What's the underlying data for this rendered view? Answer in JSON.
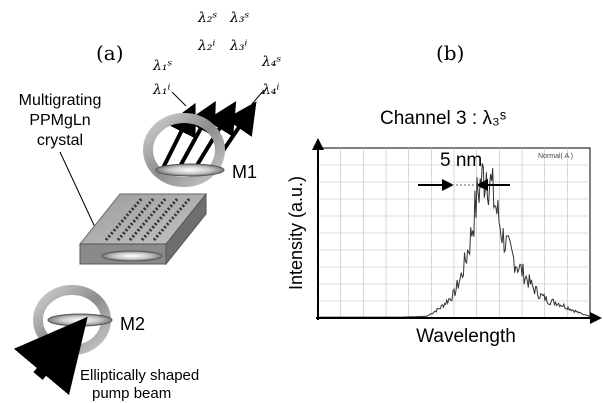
{
  "panel_a": {
    "label": "(a)",
    "crystal_label": [
      "Multigrating",
      "PPMgLn",
      "crystal"
    ],
    "mirror1_label": "M1",
    "mirror2_label": "M2",
    "pump_label": [
      "Elliptically shaped",
      "pump beam"
    ],
    "wavelength_labels": [
      {
        "signal": "λ₁ˢ",
        "idler": "λ₁ⁱ"
      },
      {
        "signal": "λ₂ˢ",
        "idler": "λ₂ⁱ"
      },
      {
        "signal": "λ₃ˢ",
        "idler": "λ₃ⁱ"
      },
      {
        "signal": "λ₄ˢ",
        "idler": "λ₄ⁱ"
      }
    ]
  },
  "panel_b": {
    "label": "(b)",
    "channel_title": "Channel 3 : λ₃ˢ",
    "width_annotation": "5 nm",
    "instrument_label": "Normal( A )",
    "ylabel": "Intensity (a.u.)",
    "xlabel": "Wavelength"
  },
  "chart_data": {
    "type": "line",
    "title": "Channel 3 : λ₃ˢ",
    "xlabel": "Wavelength",
    "ylabel": "Intensity (a.u.)",
    "grid": true,
    "xlim": [
      0,
      10
    ],
    "ylim": [
      0,
      10
    ],
    "series": [
      {
        "x": [
          0,
          1.5,
          3,
          4.0,
          4.5,
          5.0,
          5.3,
          5.6,
          5.9,
          6.2,
          6.5,
          6.8,
          7.0,
          7.3,
          7.6,
          7.9,
          8.2,
          8.5,
          8.8,
          9.2,
          9.6,
          10
        ],
        "y": [
          0.05,
          0.05,
          0.05,
          0.1,
          0.6,
          1.4,
          2.6,
          4.6,
          7.6,
          8.8,
          6.8,
          4.8,
          4.0,
          3.2,
          2.5,
          1.8,
          1.3,
          1.0,
          0.9,
          0.6,
          0.3,
          0.1
        ]
      }
    ],
    "annotations": [
      {
        "text": "5 nm"
      }
    ]
  }
}
